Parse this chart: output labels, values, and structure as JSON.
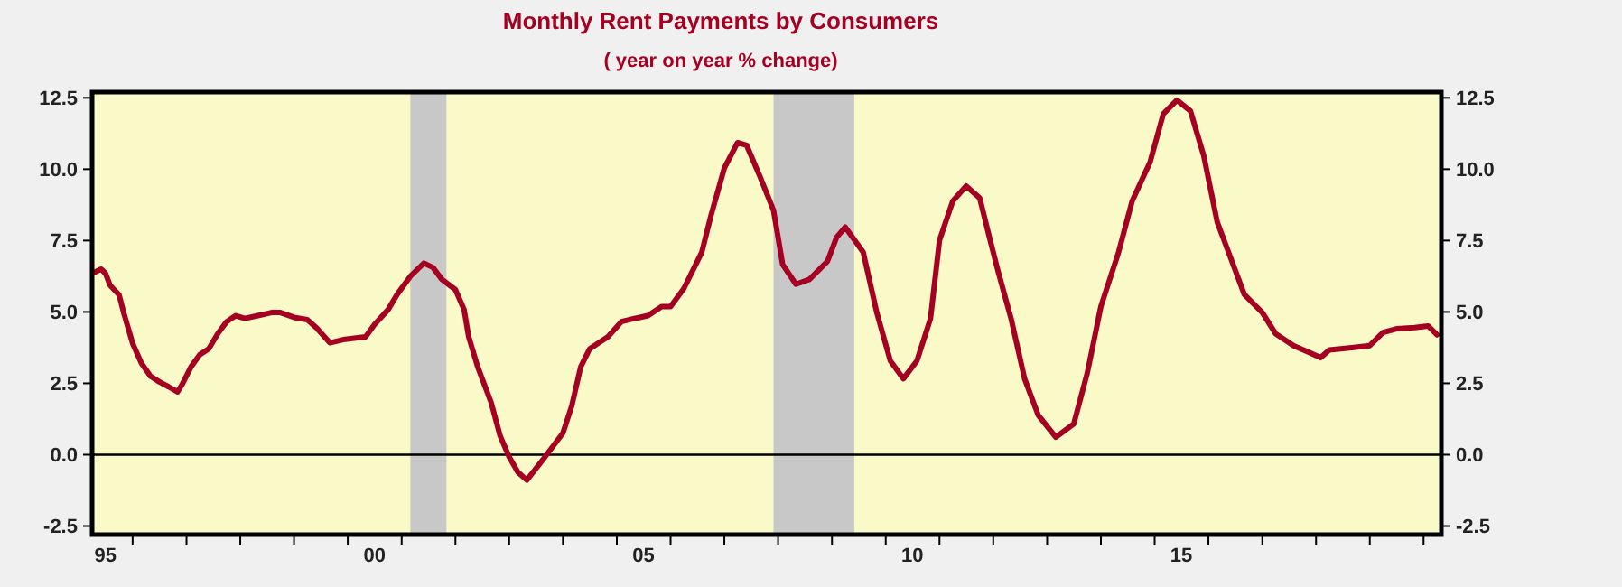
{
  "chart_data": {
    "type": "line",
    "title": "Monthly Rent Payments by Consumers",
    "subtitle": "( year on year % change)",
    "x": [
      "1995-04",
      "1995-06",
      "1995-07",
      "1995-08",
      "1995-10",
      "1995-11",
      "1996-01",
      "1996-03",
      "1996-05",
      "1996-07",
      "1996-09",
      "1996-11",
      "1996-12",
      "1997-02",
      "1997-04",
      "1997-06",
      "1997-08",
      "1997-10",
      "1997-12",
      "1998-02",
      "1998-05",
      "1998-08",
      "1998-10",
      "1999-01",
      "1999-04",
      "1999-06",
      "1999-09",
      "1999-12",
      "2000-02",
      "2000-05",
      "2000-07",
      "2000-10",
      "2000-12",
      "2001-03",
      "2001-06",
      "2001-08",
      "2001-10",
      "2002-01",
      "2002-03",
      "2002-04",
      "2002-06",
      "2002-09",
      "2002-11",
      "2003-01",
      "2003-03",
      "2003-05",
      "2003-09",
      "2004-01",
      "2004-03",
      "2004-05",
      "2004-07",
      "2004-11",
      "2005-02",
      "2005-05",
      "2005-08",
      "2005-11",
      "2006-01",
      "2006-04",
      "2006-08",
      "2006-10",
      "2007-01",
      "2007-04",
      "2007-06",
      "2007-09",
      "2007-12",
      "2008-02",
      "2008-05",
      "2008-08",
      "2008-12",
      "2009-02",
      "2009-04",
      "2009-08",
      "2009-11",
      "2010-02",
      "2010-05",
      "2010-08",
      "2010-11",
      "2011-01",
      "2011-04",
      "2011-07",
      "2011-10",
      "2011-12",
      "2012-02",
      "2012-05",
      "2012-08",
      "2012-11",
      "2013-03",
      "2013-07",
      "2013-10",
      "2014-01",
      "2014-05",
      "2014-08",
      "2014-12",
      "2015-03",
      "2015-06",
      "2015-09",
      "2015-12",
      "2016-03",
      "2016-06",
      "2016-09",
      "2017-01",
      "2017-04",
      "2017-08",
      "2017-11",
      "2018-02",
      "2018-04",
      "2018-09",
      "2019-01",
      "2019-04",
      "2019-07",
      "2019-11",
      "2020-02",
      "2020-04"
    ],
    "series": [
      {
        "color": "#a50021",
        "values": [
          6.35,
          6.5,
          6.35,
          5.93,
          5.6,
          4.98,
          3.9,
          3.2,
          2.75,
          2.55,
          2.38,
          2.2,
          2.45,
          3.08,
          3.5,
          3.71,
          4.24,
          4.66,
          4.87,
          4.77,
          4.87,
          4.98,
          4.98,
          4.81,
          4.73,
          4.45,
          3.92,
          4.03,
          4.07,
          4.13,
          4.56,
          5.08,
          5.61,
          6.25,
          6.71,
          6.56,
          6.14,
          5.78,
          5.08,
          4.13,
          3.08,
          1.82,
          0.65,
          -0.08,
          -0.61,
          -0.89,
          -0.08,
          0.76,
          1.71,
          3.08,
          3.71,
          4.13,
          4.66,
          4.77,
          4.87,
          5.19,
          5.19,
          5.82,
          7.09,
          8.35,
          10.04,
          10.93,
          10.84,
          9.73,
          8.56,
          6.66,
          5.97,
          6.14,
          6.77,
          7.61,
          7.97,
          7.09,
          4.98,
          3.29,
          2.66,
          3.29,
          4.77,
          7.51,
          8.88,
          9.41,
          8.99,
          7.72,
          6.46,
          4.77,
          2.66,
          1.39,
          0.61,
          1.08,
          2.87,
          5.19,
          7.09,
          8.88,
          10.25,
          11.94,
          12.42,
          12.04,
          10.46,
          8.15,
          6.88,
          5.61,
          4.98,
          4.24,
          3.82,
          3.61,
          3.4,
          3.67,
          3.75,
          3.82,
          4.28,
          4.41,
          4.45,
          4.51,
          4.2
        ]
      }
    ],
    "xlim": [
      "1995-04",
      "2020-05"
    ],
    "xticks": [
      {
        "value": "1995-07",
        "label": "95"
      },
      {
        "value": "2000-07",
        "label": "00"
      },
      {
        "value": "2005-07",
        "label": "05"
      },
      {
        "value": "2010-07",
        "label": "10"
      },
      {
        "value": "2015-07",
        "label": "15"
      },
      {
        "value": "1996",
        "label": null
      },
      {
        "value": "1997",
        "label": null
      },
      {
        "value": "1998",
        "label": null
      },
      {
        "value": "1999",
        "label": null
      },
      {
        "value": "2000",
        "label": null
      },
      {
        "value": "2001",
        "label": null
      },
      {
        "value": "2002",
        "label": null
      },
      {
        "value": "2003",
        "label": null
      },
      {
        "value": "2004",
        "label": null
      },
      {
        "value": "2005",
        "label": null
      },
      {
        "value": "2006",
        "label": null
      },
      {
        "value": "2007",
        "label": null
      },
      {
        "value": "2008",
        "label": null
      },
      {
        "value": "2009",
        "label": null
      },
      {
        "value": "2010",
        "label": null
      },
      {
        "value": "2011",
        "label": null
      },
      {
        "value": "2012",
        "label": null
      },
      {
        "value": "2013",
        "label": null
      },
      {
        "value": "2014",
        "label": null
      },
      {
        "value": "2015",
        "label": null
      },
      {
        "value": "2016",
        "label": null
      },
      {
        "value": "2017",
        "label": null
      },
      {
        "value": "2018",
        "label": null
      },
      {
        "value": "2019",
        "label": null
      },
      {
        "value": "2020",
        "label": null
      }
    ],
    "ylim": [
      -2.8,
      12.7
    ],
    "yticks": [
      {
        "value": -2.5,
        "label": "-2.5"
      },
      {
        "value": 0,
        "label": "0.0"
      },
      {
        "value": 2.5,
        "label": "2.5"
      },
      {
        "value": 5,
        "label": "5.0"
      },
      {
        "value": 7.5,
        "label": "7.5"
      },
      {
        "value": 10,
        "label": "10.0"
      },
      {
        "value": 12.5,
        "label": "12.5"
      }
    ],
    "y2lim": [
      -2.8,
      12.7
    ],
    "y2ticks": [
      {
        "value": -2.5,
        "label": "-2.5"
      },
      {
        "value": 0,
        "label": "0.0"
      },
      {
        "value": 2.5,
        "label": "2.5"
      },
      {
        "value": 5,
        "label": "5.0"
      },
      {
        "value": 7.5,
        "label": "7.5"
      },
      {
        "value": 10,
        "label": "10.0"
      },
      {
        "value": 12.5,
        "label": "12.5"
      }
    ],
    "bands": [
      {
        "axis": "x",
        "from": "2001-03",
        "to": "2001-11",
        "color": "#c8c8c8"
      },
      {
        "axis": "x",
        "from": "2007-12",
        "to": "2009-06",
        "color": "#c8c8c8"
      }
    ],
    "ref_lines": [
      {
        "axis": "y",
        "value": 0,
        "color": "#000000"
      }
    ],
    "grid": false,
    "marker": "none",
    "line_style": "solid"
  }
}
